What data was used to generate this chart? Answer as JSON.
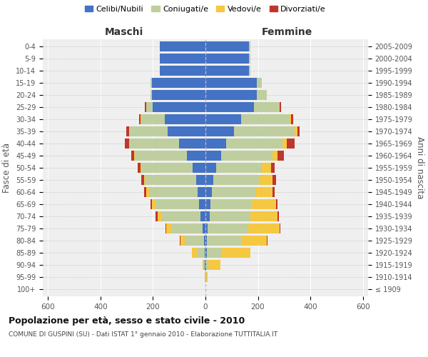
{
  "age_groups": [
    "100+",
    "95-99",
    "90-94",
    "85-89",
    "80-84",
    "75-79",
    "70-74",
    "65-69",
    "60-64",
    "55-59",
    "50-54",
    "45-49",
    "40-44",
    "35-39",
    "30-34",
    "25-29",
    "20-24",
    "15-19",
    "10-14",
    "5-9",
    "0-4"
  ],
  "birth_years": [
    "≤ 1909",
    "1910-1914",
    "1915-1919",
    "1920-1924",
    "1925-1929",
    "1930-1934",
    "1935-1939",
    "1940-1944",
    "1945-1949",
    "1950-1954",
    "1955-1959",
    "1960-1964",
    "1965-1969",
    "1970-1974",
    "1975-1979",
    "1980-1984",
    "1985-1989",
    "1990-1994",
    "1995-1999",
    "2000-2004",
    "2005-2009"
  ],
  "male": {
    "celibi": [
      0,
      0,
      2,
      3,
      5,
      10,
      18,
      25,
      30,
      35,
      50,
      70,
      100,
      145,
      155,
      200,
      205,
      205,
      175,
      175,
      175
    ],
    "coniugati": [
      1,
      2,
      5,
      30,
      75,
      120,
      150,
      165,
      185,
      195,
      195,
      200,
      190,
      145,
      90,
      25,
      5,
      5,
      0,
      0,
      0
    ],
    "vedovi": [
      0,
      0,
      5,
      20,
      15,
      20,
      15,
      15,
      10,
      5,
      3,
      3,
      2,
      2,
      2,
      2,
      0,
      0,
      0,
      0,
      0
    ],
    "divorziati": [
      0,
      0,
      0,
      0,
      2,
      2,
      8,
      5,
      10,
      10,
      10,
      10,
      15,
      10,
      5,
      5,
      0,
      0,
      0,
      0,
      0
    ]
  },
  "female": {
    "nubili": [
      0,
      0,
      2,
      5,
      5,
      8,
      15,
      20,
      25,
      30,
      40,
      60,
      80,
      110,
      135,
      185,
      195,
      195,
      165,
      165,
      165
    ],
    "coniugate": [
      1,
      3,
      10,
      55,
      130,
      155,
      155,
      155,
      165,
      175,
      175,
      195,
      215,
      230,
      185,
      95,
      40,
      20,
      5,
      5,
      5
    ],
    "vedove": [
      0,
      5,
      45,
      110,
      100,
      120,
      105,
      95,
      65,
      50,
      35,
      20,
      15,
      10,
      5,
      3,
      0,
      0,
      0,
      0,
      0
    ],
    "divorziate": [
      0,
      0,
      0,
      0,
      2,
      2,
      5,
      5,
      10,
      15,
      15,
      25,
      30,
      10,
      10,
      5,
      0,
      0,
      0,
      0,
      0
    ]
  },
  "colors": {
    "celibi": "#4472C4",
    "coniugati": "#BFCE9E",
    "vedovi": "#F5C842",
    "divorziati": "#C0362C"
  },
  "xlim": 620,
  "title": "Popolazione per età, sesso e stato civile - 2010",
  "subtitle": "COMUNE DI GUSPINI (SU) - Dati ISTAT 1° gennaio 2010 - Elaborazione TUTTITALIA.IT",
  "legend_labels": [
    "Celibi/Nubili",
    "Coniugati/e",
    "Vedovi/e",
    "Divorziati/e"
  ],
  "ylabel_left": "Fasce di età",
  "ylabel_right": "Anni di nascita",
  "xlabel_left": "Maschi",
  "xlabel_right": "Femmine"
}
